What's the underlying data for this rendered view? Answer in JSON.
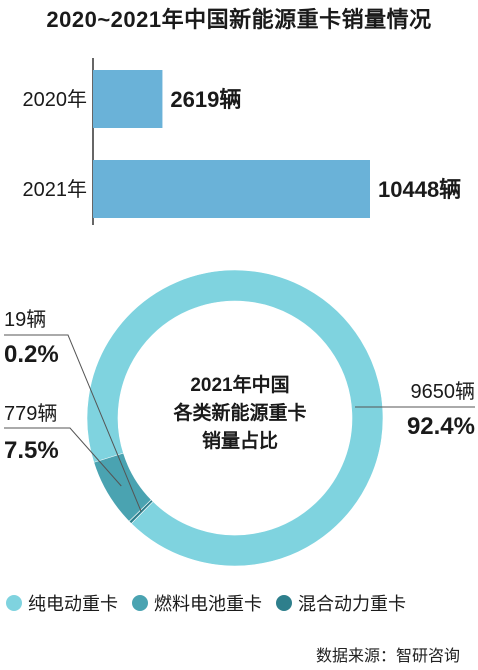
{
  "title": "2020~2021年中国新能源重卡销量情况",
  "colors": {
    "bar": "#6ab2d8",
    "pure_ev": "#7fd3df",
    "fuel_cell": "#4aa3b1",
    "hybrid": "#2e7f8c",
    "axis": "#333333"
  },
  "chart_data": [
    {
      "type": "bar",
      "orientation": "horizontal",
      "title": "2020~2021年中国新能源重卡销量情况",
      "categories": [
        "2020年",
        "2021年"
      ],
      "values": [
        2619,
        10448
      ],
      "value_labels": [
        "2619辆",
        "10448辆"
      ]
    },
    {
      "type": "pie",
      "variant": "donut",
      "center_title_lines": [
        "2021年中国",
        "各类新能源重卡",
        "销量占比"
      ],
      "slices": [
        {
          "name": "纯电动重卡",
          "value": 9650,
          "count_label": "9650辆",
          "percent_label": "92.4%",
          "color": "#7fd3df"
        },
        {
          "name": "燃料电池重卡",
          "value": 779,
          "count_label": "779辆",
          "percent_label": "7.5%",
          "color": "#4aa3b1"
        },
        {
          "name": "混合动力重卡",
          "value": 19,
          "count_label": "19辆",
          "percent_label": "0.2%",
          "color": "#2e7f8c"
        }
      ]
    }
  ],
  "legend": [
    {
      "label": "纯电动重卡",
      "color": "#7fd3df",
      "icon": "circle-swatch"
    },
    {
      "label": "燃料电池重卡",
      "color": "#4aa3b1",
      "icon": "circle-swatch"
    },
    {
      "label": "混合动力重卡",
      "color": "#2e7f8c",
      "icon": "circle-swatch"
    }
  ],
  "source": "数据来源：智研咨询"
}
